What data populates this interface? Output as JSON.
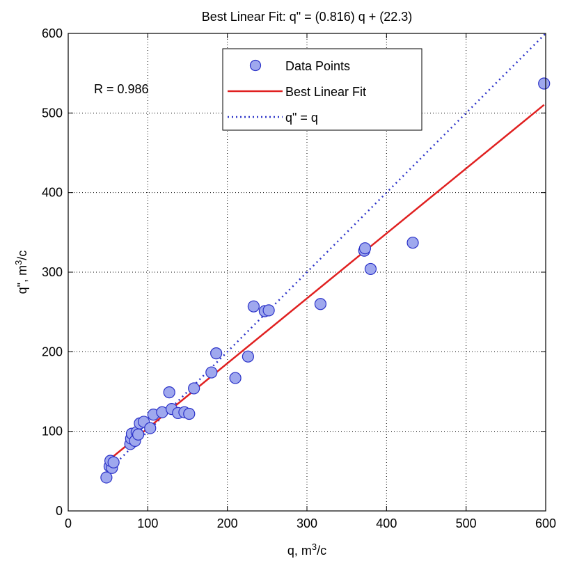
{
  "chart_data": {
    "type": "scatter",
    "title": "Best Linear Fit:  q\" = (0.816) q + (22.3)",
    "xlabel": {
      "main": "q, m",
      "sup": "3",
      "tail": "/c"
    },
    "ylabel": {
      "main": "q\", m",
      "sup": "3",
      "tail": "/c"
    },
    "xlim": [
      0,
      600
    ],
    "ylim": [
      0,
      600
    ],
    "xticks": [
      0,
      100,
      200,
      300,
      400,
      500,
      600
    ],
    "yticks": [
      0,
      100,
      200,
      300,
      400,
      500,
      600
    ],
    "grid": true,
    "grid_style": "dotted",
    "legend_position": "top-center",
    "annotation": "R  = 0.986",
    "fit": {
      "slope": 0.816,
      "intercept": 22.3,
      "x_range": [
        48,
        598
      ]
    },
    "identity_line": {
      "x_range": [
        48,
        600
      ]
    },
    "colors": {
      "marker_fill": "#9fa8ee",
      "marker_edge": "#2a31c8",
      "fit_line": "#e02020",
      "identity_line": "#2a31c8"
    },
    "series": [
      {
        "name": "Data Points",
        "style": "markers",
        "points": [
          [
            48,
            42
          ],
          [
            52,
            56
          ],
          [
            55,
            54
          ],
          [
            53,
            63
          ],
          [
            57,
            61
          ],
          [
            78,
            84
          ],
          [
            79,
            91
          ],
          [
            80,
            97
          ],
          [
            84,
            88
          ],
          [
            86,
            99
          ],
          [
            88,
            96
          ],
          [
            90,
            110
          ],
          [
            95,
            112
          ],
          [
            103,
            104
          ],
          [
            107,
            121
          ],
          [
            118,
            124
          ],
          [
            127,
            149
          ],
          [
            130,
            128
          ],
          [
            138,
            123
          ],
          [
            146,
            124
          ],
          [
            152,
            122
          ],
          [
            158,
            154
          ],
          [
            180,
            174
          ],
          [
            186,
            198
          ],
          [
            210,
            167
          ],
          [
            226,
            194
          ],
          [
            233,
            257
          ],
          [
            247,
            251
          ],
          [
            252,
            252
          ],
          [
            317,
            260
          ],
          [
            372,
            327
          ],
          [
            373,
            330
          ],
          [
            380,
            304
          ],
          [
            433,
            337
          ],
          [
            598,
            537
          ]
        ]
      },
      {
        "name": "Best Linear Fit",
        "style": "solid-line"
      },
      {
        "name": "q\" = q",
        "style": "dotted-line"
      }
    ]
  }
}
